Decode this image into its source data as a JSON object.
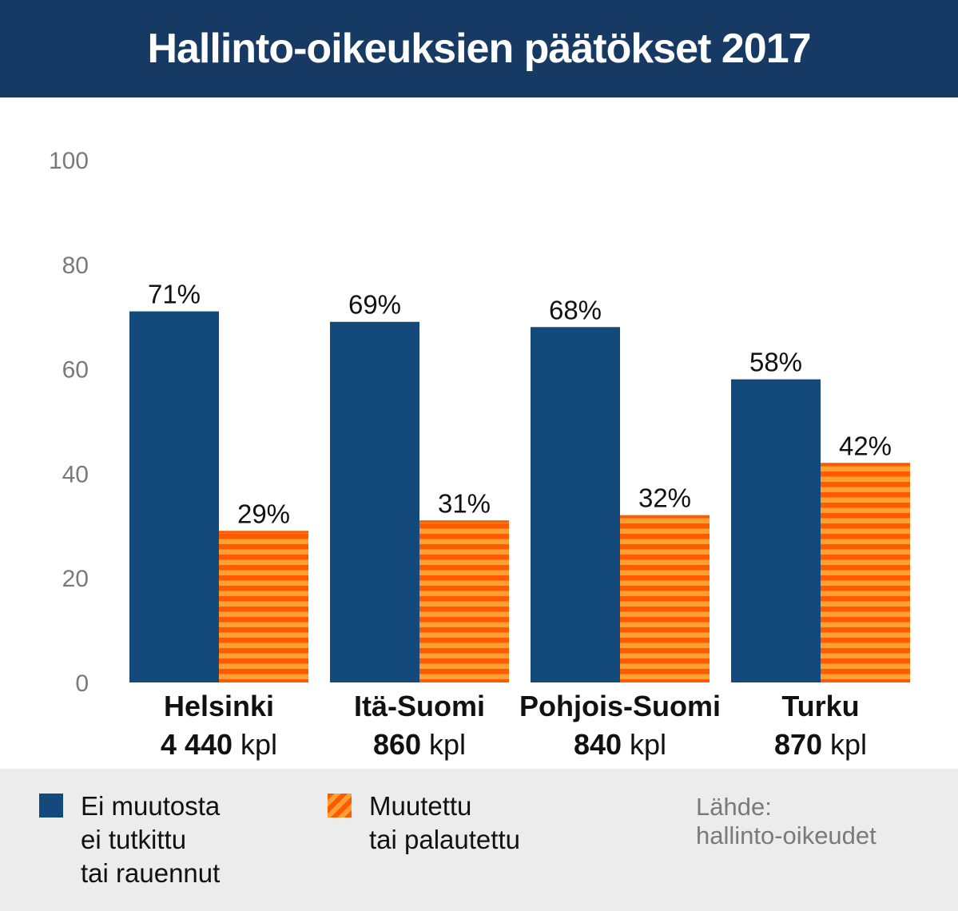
{
  "title": "Hallinto-oikeuksien päätökset 2017",
  "colors": {
    "header_bg": "#163a63",
    "blue": "#13497b",
    "orange_dark": "#ff5a00",
    "orange_light": "#ffa034",
    "footer_bg": "#ececec"
  },
  "chart_data": {
    "type": "bar",
    "title": "Hallinto-oikeuksien päätökset 2017",
    "xlabel": "",
    "ylabel": "",
    "ylim": [
      0,
      100
    ],
    "yticks": [
      0,
      20,
      40,
      60,
      80,
      100
    ],
    "categories": [
      {
        "name": "Helsinki",
        "count": "4 440",
        "unit": "kpl"
      },
      {
        "name": "Itä-Suomi",
        "count": "860",
        "unit": "kpl"
      },
      {
        "name": "Pohjois-Suomi",
        "count": "840",
        "unit": "kpl"
      },
      {
        "name": "Turku",
        "count": "870",
        "unit": "kpl"
      }
    ],
    "series": [
      {
        "name": "Ei muutosta ei tutkittu tai rauennut",
        "values": [
          71,
          69,
          68,
          58
        ],
        "labels": [
          "71%",
          "69%",
          "68%",
          "58%"
        ]
      },
      {
        "name": "Muutettu tai palautettu",
        "values": [
          29,
          31,
          32,
          42
        ],
        "labels": [
          "29%",
          "31%",
          "32%",
          "42%"
        ]
      }
    ]
  },
  "legend": {
    "items": [
      {
        "lines": [
          "Ei muutosta",
          "ei tutkittu",
          "tai rauennut"
        ]
      },
      {
        "lines": [
          "Muutettu",
          "tai palautettu"
        ]
      }
    ]
  },
  "source": {
    "label": "Lähde:",
    "value": "hallinto-oikeudet"
  }
}
